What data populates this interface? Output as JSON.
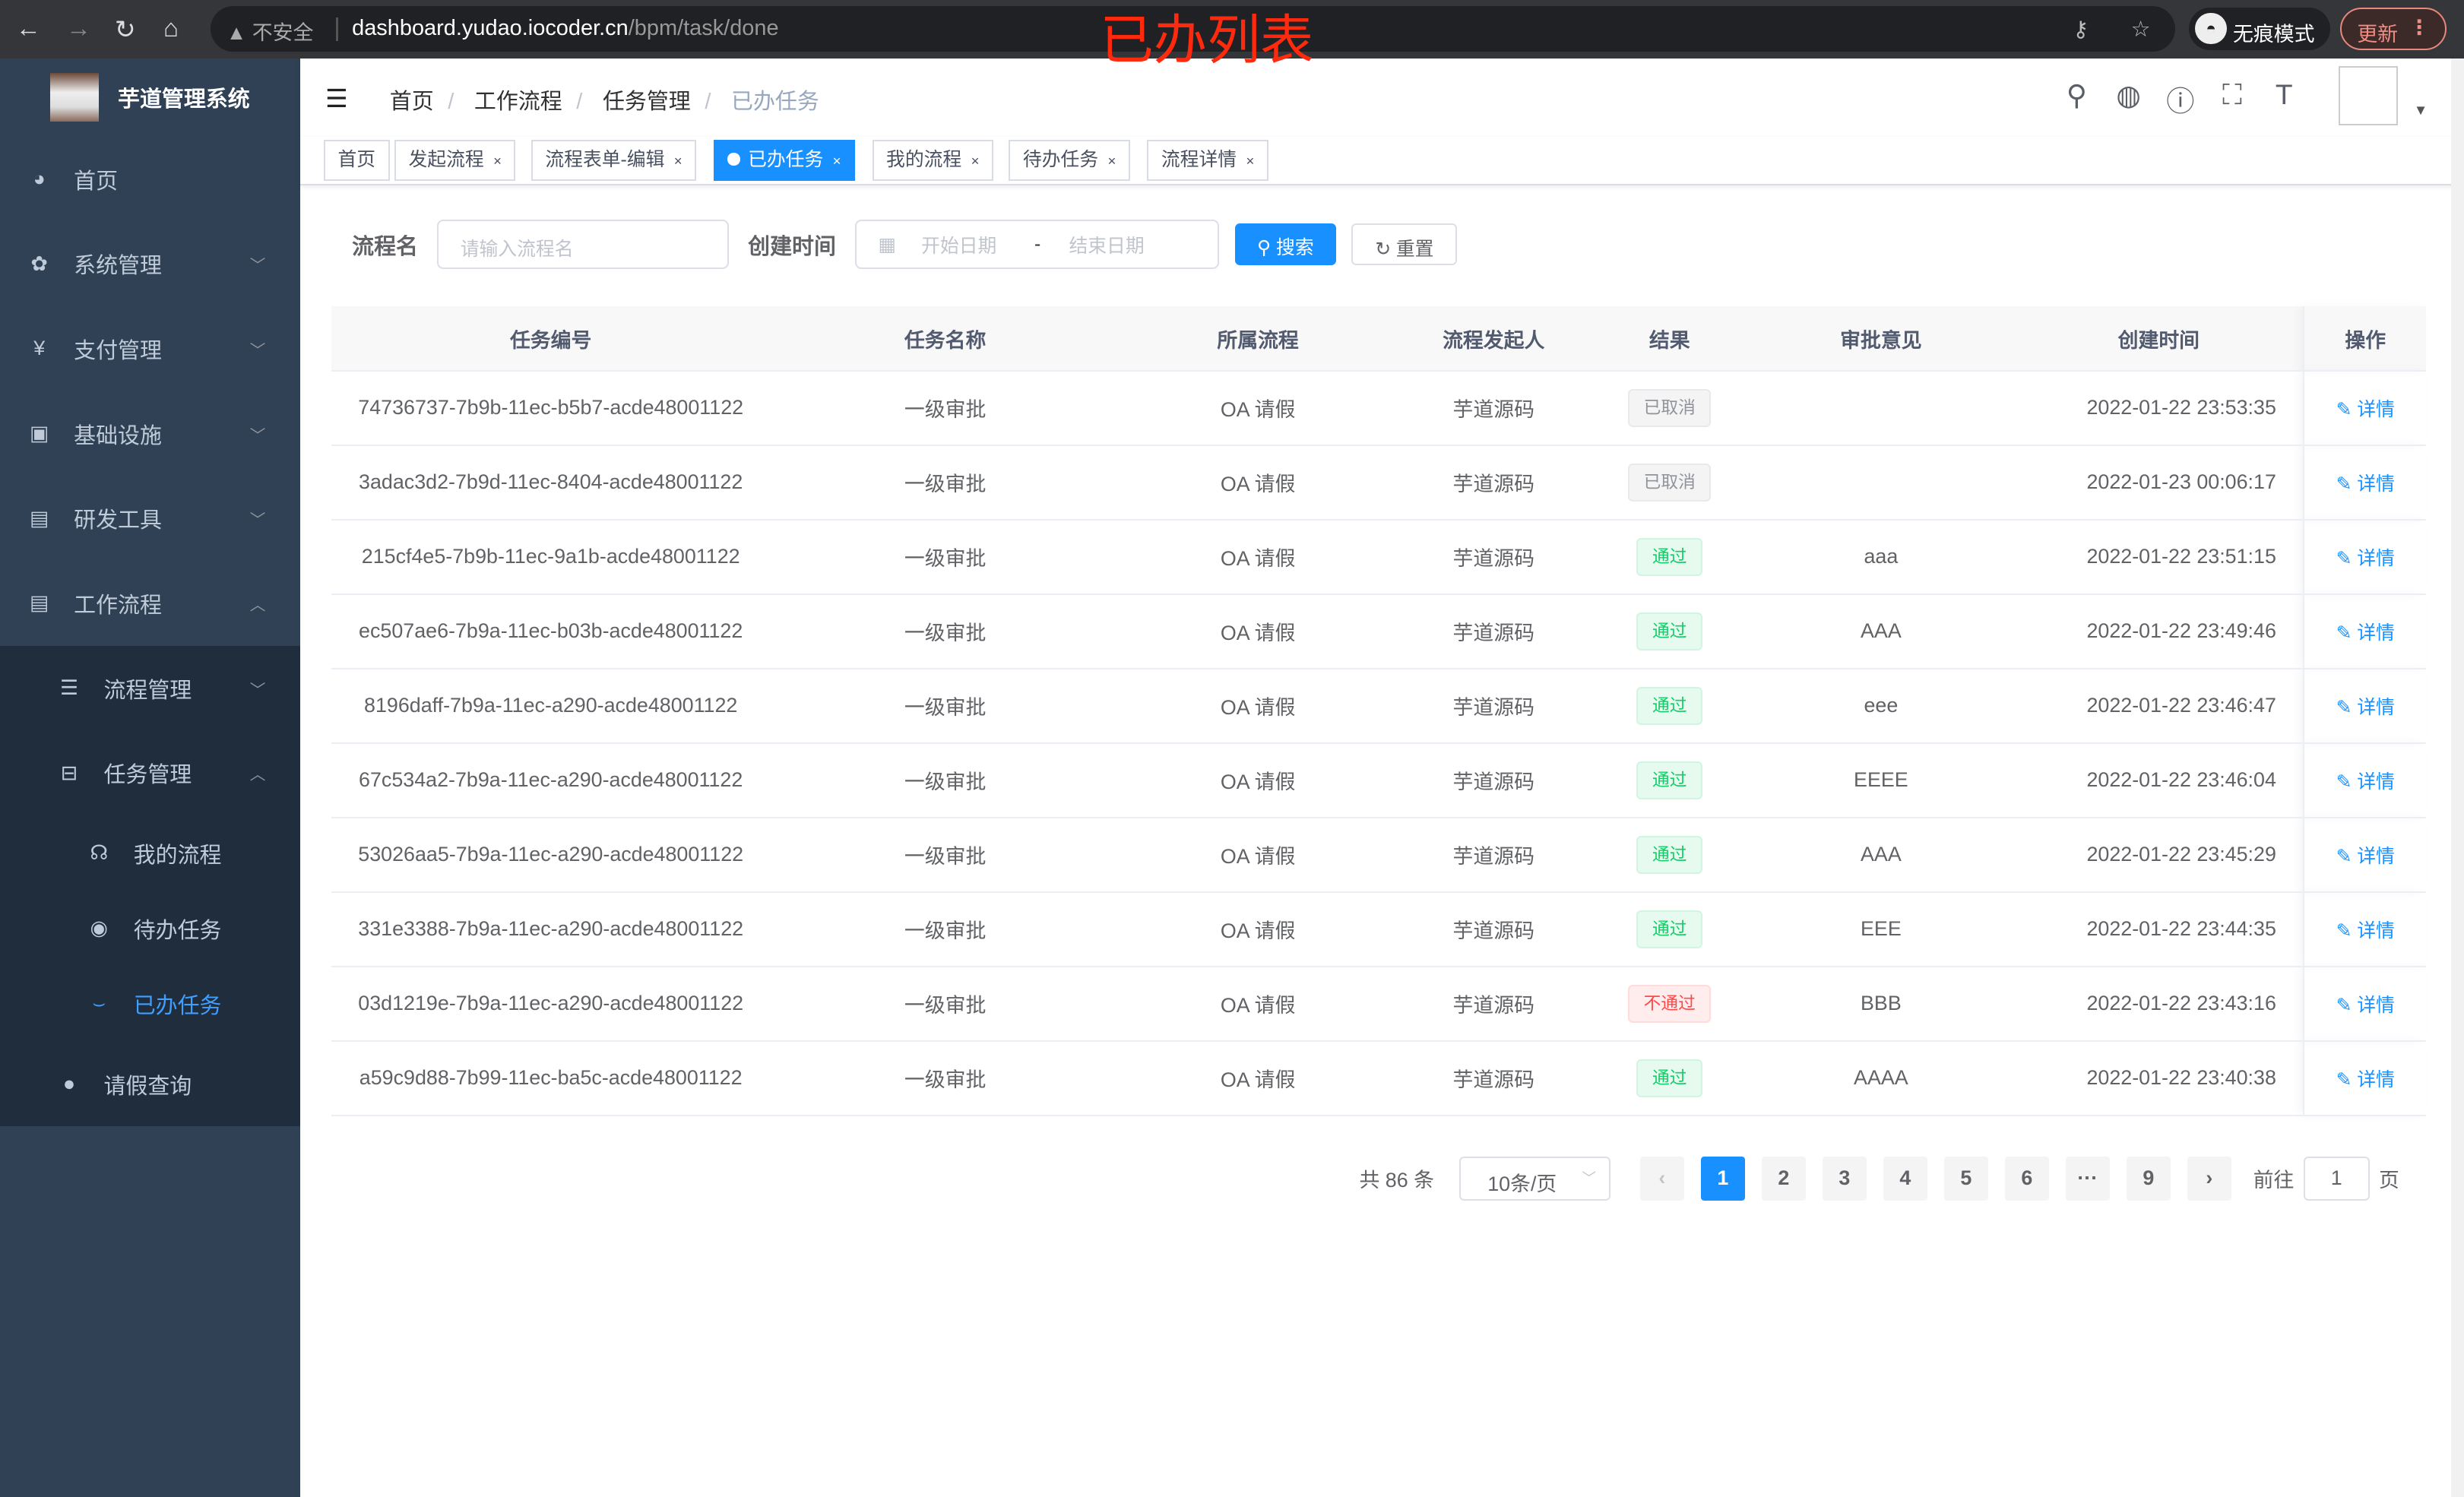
{
  "browser": {
    "security": "不安全",
    "url_host": "dashboard.yudao.iocoder.cn",
    "url_path": "/bpm/task/done",
    "incognito": "无痕模式",
    "update": "更新"
  },
  "overlay_title": "已办列表",
  "sidebar": {
    "app_name": "芋道管理系统",
    "items": [
      {
        "label": "首页",
        "icon": "dashboard-icon"
      },
      {
        "label": "系统管理",
        "icon": "gear-icon"
      },
      {
        "label": "支付管理",
        "icon": "yen-icon"
      },
      {
        "label": "基础设施",
        "icon": "monitor-icon"
      },
      {
        "label": "研发工具",
        "icon": "toolbox-icon"
      },
      {
        "label": "工作流程",
        "icon": "toolbox-icon"
      },
      {
        "label": "流程管理",
        "icon": "list-icon"
      },
      {
        "label": "任务管理",
        "icon": "tree-icon"
      },
      {
        "label": "我的流程",
        "icon": "chat-icon"
      },
      {
        "label": "待办任务",
        "icon": "eye-icon"
      },
      {
        "label": "已办任务",
        "icon": "done-icon"
      },
      {
        "label": "请假查询",
        "icon": "user-icon"
      }
    ]
  },
  "breadcrumb": [
    "首页",
    "工作流程",
    "任务管理",
    "已办任务"
  ],
  "tabs": [
    "首页",
    "发起流程",
    "流程表单-编辑",
    "已办任务",
    "我的流程",
    "待办任务",
    "流程详情"
  ],
  "search": {
    "name_label": "流程名",
    "name_placeholder": "请输入流程名",
    "time_label": "创建时间",
    "start_placeholder": "开始日期",
    "range_sep": "-",
    "end_placeholder": "结束日期",
    "search_btn": "搜索",
    "reset_btn": "重置"
  },
  "table": {
    "headers": [
      "任务编号",
      "任务名称",
      "所属流程",
      "流程发起人",
      "结果",
      "审批意见",
      "创建时间",
      "操作"
    ],
    "rows": [
      [
        "74736737-7b9b-11ec-b5b7-acde48001122",
        "一级审批",
        "OA 请假",
        "芋道源码",
        "已取消",
        "",
        "2022-01-22 23:53:35",
        "详情"
      ],
      [
        "3adac3d2-7b9d-11ec-8404-acde48001122",
        "一级审批",
        "OA 请假",
        "芋道源码",
        "已取消",
        "",
        "2022-01-23 00:06:17",
        "详情"
      ],
      [
        "215cf4e5-7b9b-11ec-9a1b-acde48001122",
        "一级审批",
        "OA 请假",
        "芋道源码",
        "通过",
        "aaa",
        "2022-01-22 23:51:15",
        "详情"
      ],
      [
        "ec507ae6-7b9a-11ec-b03b-acde48001122",
        "一级审批",
        "OA 请假",
        "芋道源码",
        "通过",
        "AAA",
        "2022-01-22 23:49:46",
        "详情"
      ],
      [
        "8196daff-7b9a-11ec-a290-acde48001122",
        "一级审批",
        "OA 请假",
        "芋道源码",
        "通过",
        "eee",
        "2022-01-22 23:46:47",
        "详情"
      ],
      [
        "67c534a2-7b9a-11ec-a290-acde48001122",
        "一级审批",
        "OA 请假",
        "芋道源码",
        "通过",
        "EEEE",
        "2022-01-22 23:46:04",
        "详情"
      ],
      [
        "53026aa5-7b9a-11ec-a290-acde48001122",
        "一级审批",
        "OA 请假",
        "芋道源码",
        "通过",
        "AAA",
        "2022-01-22 23:45:29",
        "详情"
      ],
      [
        "331e3388-7b9a-11ec-a290-acde48001122",
        "一级审批",
        "OA 请假",
        "芋道源码",
        "通过",
        "EEE",
        "2022-01-22 23:44:35",
        "详情"
      ],
      [
        "03d1219e-7b9a-11ec-a290-acde48001122",
        "一级审批",
        "OA 请假",
        "芋道源码",
        "不通过",
        "BBB",
        "2022-01-22 23:43:16",
        "详情"
      ],
      [
        "a59c9d88-7b99-11ec-ba5c-acde48001122",
        "一级审批",
        "OA 请假",
        "芋道源码",
        "通过",
        "AAAA",
        "2022-01-22 23:40:38",
        "详情"
      ]
    ]
  },
  "result_colors": {
    "已取消": [
      "#909399",
      "#f4f4f5",
      "#e9e9eb"
    ],
    "通过": [
      "#13ce66",
      "#e7faf0",
      "#d0f5e0"
    ],
    "不通过": [
      "#ff4949",
      "#ffeded",
      "#ffdbdb"
    ]
  },
  "pagination": {
    "total": "共 86 条",
    "page_size": "10条/页",
    "pages": [
      "1",
      "2",
      "3",
      "4",
      "5",
      "6",
      "···",
      "9"
    ],
    "current": "1",
    "goto_label": "前往",
    "goto_value": "1",
    "page_unit": "页"
  },
  "accent": "#1890ff"
}
